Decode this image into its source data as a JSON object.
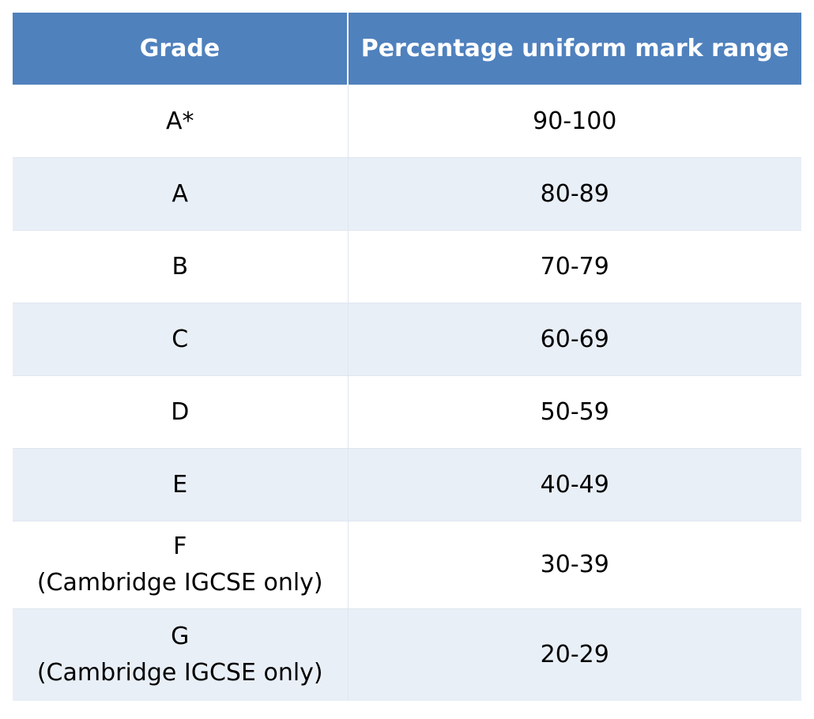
{
  "table": {
    "headers": {
      "grade": "Grade",
      "range": "Percentage uniform mark range"
    },
    "rows": [
      {
        "grade": "A*",
        "note": "",
        "range": "90-100"
      },
      {
        "grade": "A",
        "note": "",
        "range": "80-89"
      },
      {
        "grade": "B",
        "note": "",
        "range": "70-79"
      },
      {
        "grade": "C",
        "note": "",
        "range": "60-69"
      },
      {
        "grade": "D",
        "note": "",
        "range": "50-59"
      },
      {
        "grade": "E",
        "note": "",
        "range": "40-49"
      },
      {
        "grade": "F",
        "note": "(Cambridge IGCSE only)",
        "range": "30-39"
      },
      {
        "grade": "G",
        "note": "(Cambridge IGCSE only)",
        "range": "20-29"
      }
    ]
  },
  "colors": {
    "header_background": "#4f81bd",
    "header_text": "#ffffff",
    "stripe_background": "#e9eff7",
    "cell_border": "#dfe6ef"
  }
}
